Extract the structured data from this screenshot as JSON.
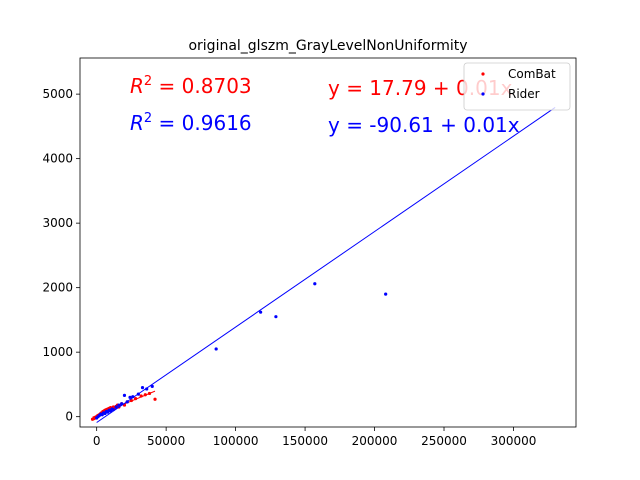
{
  "chart_data": {
    "type": "scatter",
    "title": "original_glszm_GrayLevelNonUniformity",
    "xlabel": "",
    "ylabel": "",
    "xlim": [
      -12000,
      345000
    ],
    "ylim": [
      -160,
      5560
    ],
    "x_ticks": [
      0,
      50000,
      100000,
      150000,
      200000,
      250000,
      300000
    ],
    "x_tick_labels": [
      "0",
      "50000",
      "100000",
      "150000",
      "200000",
      "250000",
      "300000"
    ],
    "y_ticks": [
      0,
      1000,
      2000,
      3000,
      4000,
      5000
    ],
    "y_tick_labels": [
      "0",
      "1000",
      "2000",
      "3000",
      "4000",
      "5000"
    ],
    "grid": false,
    "legend_position": "top-right",
    "series": [
      {
        "name": "ComBat",
        "color": "#ff0000",
        "points": [
          [
            -3000,
            -40
          ],
          [
            -2000,
            -30
          ],
          [
            -1000,
            -20
          ],
          [
            0,
            0
          ],
          [
            500,
            10
          ],
          [
            1000,
            20
          ],
          [
            1500,
            15
          ],
          [
            2000,
            30
          ],
          [
            2500,
            40
          ],
          [
            3000,
            50
          ],
          [
            3500,
            60
          ],
          [
            4000,
            45
          ],
          [
            4500,
            80
          ],
          [
            5000,
            70
          ],
          [
            5500,
            90
          ],
          [
            6000,
            100
          ],
          [
            6500,
            85
          ],
          [
            7000,
            110
          ],
          [
            7500,
            95
          ],
          [
            8000,
            120
          ],
          [
            8500,
            100
          ],
          [
            9000,
            130
          ],
          [
            9500,
            110
          ],
          [
            10000,
            140
          ],
          [
            11000,
            120
          ],
          [
            12000,
            150
          ],
          [
            13000,
            130
          ],
          [
            14000,
            160
          ],
          [
            15000,
            180
          ],
          [
            16000,
            150
          ],
          [
            18000,
            200
          ],
          [
            20000,
            180
          ],
          [
            22000,
            230
          ],
          [
            25000,
            250
          ],
          [
            28000,
            280
          ],
          [
            32000,
            320
          ],
          [
            35000,
            340
          ],
          [
            38000,
            360
          ],
          [
            42000,
            270
          ]
        ],
        "fit": {
          "intercept": 17.79,
          "slope": 0.01,
          "x_range": [
            -3000,
            42000
          ]
        },
        "r2_label": "R^2 = 0.8703",
        "equation_label": "y = 17.79 + 0.01x"
      },
      {
        "name": "Rider",
        "color": "#0000ff",
        "points": [
          [
            0,
            -20
          ],
          [
            1000,
            0
          ],
          [
            2000,
            20
          ],
          [
            3000,
            40
          ],
          [
            4000,
            30
          ],
          [
            5000,
            60
          ],
          [
            6000,
            50
          ],
          [
            7000,
            80
          ],
          [
            8000,
            70
          ],
          [
            9000,
            100
          ],
          [
            10000,
            90
          ],
          [
            11000,
            120
          ],
          [
            12000,
            110
          ],
          [
            14000,
            150
          ],
          [
            16000,
            180
          ],
          [
            18000,
            200
          ],
          [
            20000,
            330
          ],
          [
            22000,
            230
          ],
          [
            24000,
            300
          ],
          [
            26000,
            310
          ],
          [
            30000,
            350
          ],
          [
            33000,
            450
          ],
          [
            36000,
            430
          ],
          [
            40000,
            470
          ],
          [
            86000,
            1050
          ],
          [
            118000,
            1620
          ],
          [
            129000,
            1550
          ],
          [
            157000,
            2060
          ],
          [
            208000,
            1900
          ]
        ],
        "fit": {
          "intercept": -90.61,
          "slope": 0.01,
          "x_range": [
            0,
            330000
          ]
        },
        "r2_label": "R^2 = 0.9616",
        "equation_label": "y = -90.61 + 0.01x"
      }
    ],
    "annotations": [
      {
        "series": 0,
        "kind": "r2",
        "r_text": "R",
        "sup": "2",
        "value_text": " = 0.8703"
      },
      {
        "series": 1,
        "kind": "r2",
        "r_text": "R",
        "sup": "2",
        "value_text": " = 0.9616"
      },
      {
        "series": 0,
        "kind": "equation",
        "text": "y = 17.79 + 0.01x"
      },
      {
        "series": 1,
        "kind": "equation",
        "text": "y = -90.61 + 0.01x"
      }
    ]
  }
}
